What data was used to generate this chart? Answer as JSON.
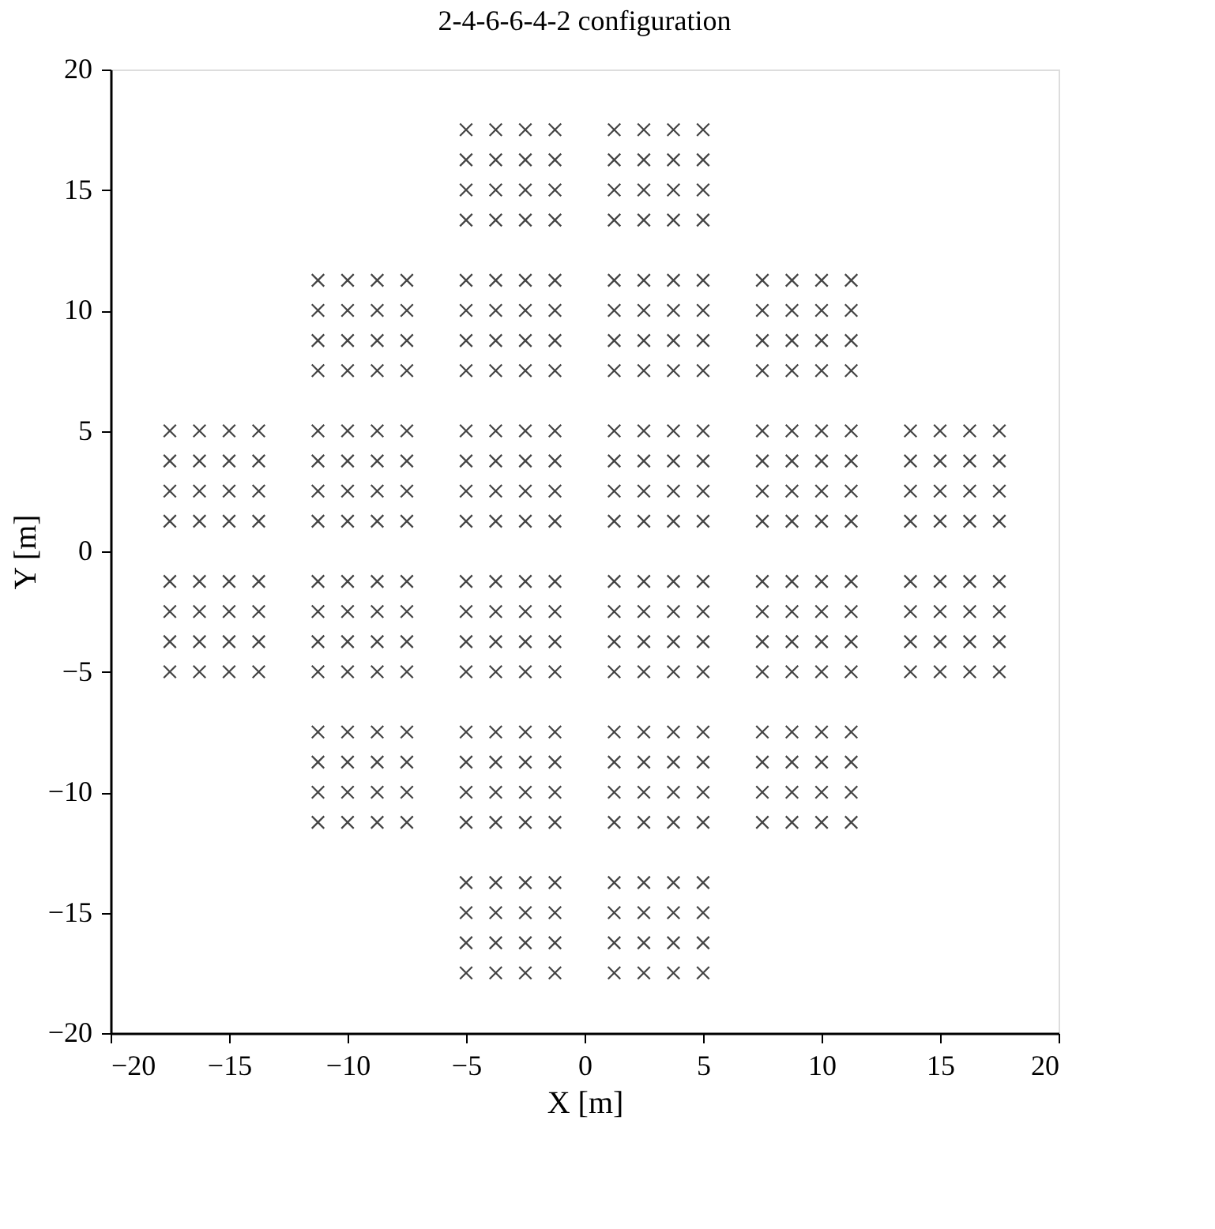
{
  "chart_data": {
    "type": "scatter",
    "title": "2-4-6-6-4-2 configuration",
    "xlabel": "X [m]",
    "ylabel": "Y [m]",
    "xlim": [
      -20,
      20
    ],
    "ylim": [
      -20,
      20
    ],
    "xticks": [
      -20,
      -15,
      -10,
      -5,
      0,
      5,
      10,
      15,
      20
    ],
    "yticks": [
      -20,
      -15,
      -10,
      -5,
      0,
      5,
      10,
      15,
      20
    ],
    "grid": false,
    "legend": false,
    "marker": "cross",
    "series": [
      {
        "color": "#444444",
        "x": [
          -5,
          -3.75,
          -2.5,
          -1.25,
          -5,
          -3.75,
          -2.5,
          -1.25,
          -5,
          -3.75,
          -2.5,
          -1.25,
          -5,
          -3.75,
          -2.5,
          -1.25
        ],
        "values": [
          17.5,
          17.5,
          17.5,
          17.5,
          16.25,
          16.25,
          16.25,
          16.25,
          15,
          15,
          15,
          15,
          13.75,
          13.75,
          13.75,
          13.75
        ]
      },
      {
        "color": "#444444",
        "x": [
          1.25,
          2.5,
          3.75,
          5,
          1.25,
          2.5,
          3.75,
          5,
          1.25,
          2.5,
          3.75,
          5,
          1.25,
          2.5,
          3.75,
          5
        ],
        "values": [
          17.5,
          17.5,
          17.5,
          17.5,
          16.25,
          16.25,
          16.25,
          16.25,
          15,
          15,
          15,
          15,
          13.75,
          13.75,
          13.75,
          13.75
        ]
      },
      {
        "color": "#444444",
        "x": [
          -11.25,
          -10,
          -8.75,
          -7.5,
          -11.25,
          -10,
          -8.75,
          -7.5,
          -11.25,
          -10,
          -8.75,
          -7.5,
          -11.25,
          -10,
          -8.75,
          -7.5
        ],
        "values": [
          11.25,
          11.25,
          11.25,
          11.25,
          10,
          10,
          10,
          10,
          8.75,
          8.75,
          8.75,
          8.75,
          7.5,
          7.5,
          7.5,
          7.5
        ]
      },
      {
        "color": "#444444",
        "x": [
          -5,
          -3.75,
          -2.5,
          -1.25,
          -5,
          -3.75,
          -2.5,
          -1.25,
          -5,
          -3.75,
          -2.5,
          -1.25,
          -5,
          -3.75,
          -2.5,
          -1.25
        ],
        "values": [
          11.25,
          11.25,
          11.25,
          11.25,
          10,
          10,
          10,
          10,
          8.75,
          8.75,
          8.75,
          8.75,
          7.5,
          7.5,
          7.5,
          7.5
        ]
      },
      {
        "color": "#444444",
        "x": [
          1.25,
          2.5,
          3.75,
          5,
          1.25,
          2.5,
          3.75,
          5,
          1.25,
          2.5,
          3.75,
          5,
          1.25,
          2.5,
          3.75,
          5
        ],
        "values": [
          11.25,
          11.25,
          11.25,
          11.25,
          10,
          10,
          10,
          10,
          8.75,
          8.75,
          8.75,
          8.75,
          7.5,
          7.5,
          7.5,
          7.5
        ]
      },
      {
        "color": "#444444",
        "x": [
          7.5,
          8.75,
          10,
          11.25,
          7.5,
          8.75,
          10,
          11.25,
          7.5,
          8.75,
          10,
          11.25,
          7.5,
          8.75,
          10,
          11.25
        ],
        "values": [
          11.25,
          11.25,
          11.25,
          11.25,
          10,
          10,
          10,
          10,
          8.75,
          8.75,
          8.75,
          8.75,
          7.5,
          7.5,
          7.5,
          7.5
        ]
      },
      {
        "color": "#444444",
        "x": [
          -17.5,
          -16.25,
          -15,
          -13.75,
          -17.5,
          -16.25,
          -15,
          -13.75,
          -17.5,
          -16.25,
          -15,
          -13.75,
          -17.5,
          -16.25,
          -15,
          -13.75
        ],
        "values": [
          5,
          5,
          5,
          5,
          3.75,
          3.75,
          3.75,
          3.75,
          2.5,
          2.5,
          2.5,
          2.5,
          1.25,
          1.25,
          1.25,
          1.25
        ]
      },
      {
        "color": "#444444",
        "x": [
          -11.25,
          -10,
          -8.75,
          -7.5,
          -11.25,
          -10,
          -8.75,
          -7.5,
          -11.25,
          -10,
          -8.75,
          -7.5,
          -11.25,
          -10,
          -8.75,
          -7.5
        ],
        "values": [
          5,
          5,
          5,
          5,
          3.75,
          3.75,
          3.75,
          3.75,
          2.5,
          2.5,
          2.5,
          2.5,
          1.25,
          1.25,
          1.25,
          1.25
        ]
      },
      {
        "color": "#444444",
        "x": [
          -5,
          -3.75,
          -2.5,
          -1.25,
          -5,
          -3.75,
          -2.5,
          -1.25,
          -5,
          -3.75,
          -2.5,
          -1.25,
          -5,
          -3.75,
          -2.5,
          -1.25
        ],
        "values": [
          5,
          5,
          5,
          5,
          3.75,
          3.75,
          3.75,
          3.75,
          2.5,
          2.5,
          2.5,
          2.5,
          1.25,
          1.25,
          1.25,
          1.25
        ]
      },
      {
        "color": "#444444",
        "x": [
          1.25,
          2.5,
          3.75,
          5,
          1.25,
          2.5,
          3.75,
          5,
          1.25,
          2.5,
          3.75,
          5,
          1.25,
          2.5,
          3.75,
          5
        ],
        "values": [
          5,
          5,
          5,
          5,
          3.75,
          3.75,
          3.75,
          3.75,
          2.5,
          2.5,
          2.5,
          2.5,
          1.25,
          1.25,
          1.25,
          1.25
        ]
      },
      {
        "color": "#444444",
        "x": [
          7.5,
          8.75,
          10,
          11.25,
          7.5,
          8.75,
          10,
          11.25,
          7.5,
          8.75,
          10,
          11.25,
          7.5,
          8.75,
          10,
          11.25
        ],
        "values": [
          5,
          5,
          5,
          5,
          3.75,
          3.75,
          3.75,
          3.75,
          2.5,
          2.5,
          2.5,
          2.5,
          1.25,
          1.25,
          1.25,
          1.25
        ]
      },
      {
        "color": "#444444",
        "x": [
          13.75,
          15,
          16.25,
          17.5,
          13.75,
          15,
          16.25,
          17.5,
          13.75,
          15,
          16.25,
          17.5,
          13.75,
          15,
          16.25,
          17.5
        ],
        "values": [
          5,
          5,
          5,
          5,
          3.75,
          3.75,
          3.75,
          3.75,
          2.5,
          2.5,
          2.5,
          2.5,
          1.25,
          1.25,
          1.25,
          1.25
        ]
      },
      {
        "color": "#444444",
        "x": [
          -17.5,
          -16.25,
          -15,
          -13.75,
          -17.5,
          -16.25,
          -15,
          -13.75,
          -17.5,
          -16.25,
          -15,
          -13.75,
          -17.5,
          -16.25,
          -15,
          -13.75
        ],
        "values": [
          -1.25,
          -1.25,
          -1.25,
          -1.25,
          -2.5,
          -2.5,
          -2.5,
          -2.5,
          -3.75,
          -3.75,
          -3.75,
          -3.75,
          -5,
          -5,
          -5,
          -5
        ]
      },
      {
        "color": "#444444",
        "x": [
          -11.25,
          -10,
          -8.75,
          -7.5,
          -11.25,
          -10,
          -8.75,
          -7.5,
          -11.25,
          -10,
          -8.75,
          -7.5,
          -11.25,
          -10,
          -8.75,
          -7.5
        ],
        "values": [
          -1.25,
          -1.25,
          -1.25,
          -1.25,
          -2.5,
          -2.5,
          -2.5,
          -2.5,
          -3.75,
          -3.75,
          -3.75,
          -3.75,
          -5,
          -5,
          -5,
          -5
        ]
      },
      {
        "color": "#444444",
        "x": [
          -5,
          -3.75,
          -2.5,
          -1.25,
          -5,
          -3.75,
          -2.5,
          -1.25,
          -5,
          -3.75,
          -2.5,
          -1.25,
          -5,
          -3.75,
          -2.5,
          -1.25
        ],
        "values": [
          -1.25,
          -1.25,
          -1.25,
          -1.25,
          -2.5,
          -2.5,
          -2.5,
          -2.5,
          -3.75,
          -3.75,
          -3.75,
          -3.75,
          -5,
          -5,
          -5,
          -5
        ]
      },
      {
        "color": "#444444",
        "x": [
          1.25,
          2.5,
          3.75,
          5,
          1.25,
          2.5,
          3.75,
          5,
          1.25,
          2.5,
          3.75,
          5,
          1.25,
          2.5,
          3.75,
          5
        ],
        "values": [
          -1.25,
          -1.25,
          -1.25,
          -1.25,
          -2.5,
          -2.5,
          -2.5,
          -2.5,
          -3.75,
          -3.75,
          -3.75,
          -3.75,
          -5,
          -5,
          -5,
          -5
        ]
      },
      {
        "color": "#444444",
        "x": [
          7.5,
          8.75,
          10,
          11.25,
          7.5,
          8.75,
          10,
          11.25,
          7.5,
          8.75,
          10,
          11.25,
          7.5,
          8.75,
          10,
          11.25
        ],
        "values": [
          -1.25,
          -1.25,
          -1.25,
          -1.25,
          -2.5,
          -2.5,
          -2.5,
          -2.5,
          -3.75,
          -3.75,
          -3.75,
          -3.75,
          -5,
          -5,
          -5,
          -5
        ]
      },
      {
        "color": "#444444",
        "x": [
          13.75,
          15,
          16.25,
          17.5,
          13.75,
          15,
          16.25,
          17.5,
          13.75,
          15,
          16.25,
          17.5,
          13.75,
          15,
          16.25,
          17.5
        ],
        "values": [
          -1.25,
          -1.25,
          -1.25,
          -1.25,
          -2.5,
          -2.5,
          -2.5,
          -2.5,
          -3.75,
          -3.75,
          -3.75,
          -3.75,
          -5,
          -5,
          -5,
          -5
        ]
      },
      {
        "color": "#444444",
        "x": [
          -11.25,
          -10,
          -8.75,
          -7.5,
          -11.25,
          -10,
          -8.75,
          -7.5,
          -11.25,
          -10,
          -8.75,
          -7.5,
          -11.25,
          -10,
          -8.75,
          -7.5
        ],
        "values": [
          -7.5,
          -7.5,
          -7.5,
          -7.5,
          -8.75,
          -8.75,
          -8.75,
          -8.75,
          -10,
          -10,
          -10,
          -10,
          -11.25,
          -11.25,
          -11.25,
          -11.25
        ]
      },
      {
        "color": "#444444",
        "x": [
          -5,
          -3.75,
          -2.5,
          -1.25,
          -5,
          -3.75,
          -2.5,
          -1.25,
          -5,
          -3.75,
          -2.5,
          -1.25,
          -5,
          -3.75,
          -2.5,
          -1.25
        ],
        "values": [
          -7.5,
          -7.5,
          -7.5,
          -7.5,
          -8.75,
          -8.75,
          -8.75,
          -8.75,
          -10,
          -10,
          -10,
          -10,
          -11.25,
          -11.25,
          -11.25,
          -11.25
        ]
      },
      {
        "color": "#444444",
        "x": [
          1.25,
          2.5,
          3.75,
          5,
          1.25,
          2.5,
          3.75,
          5,
          1.25,
          2.5,
          3.75,
          5,
          1.25,
          2.5,
          3.75,
          5
        ],
        "values": [
          -7.5,
          -7.5,
          -7.5,
          -7.5,
          -8.75,
          -8.75,
          -8.75,
          -8.75,
          -10,
          -10,
          -10,
          -10,
          -11.25,
          -11.25,
          -11.25,
          -11.25
        ]
      },
      {
        "color": "#444444",
        "x": [
          7.5,
          8.75,
          10,
          11.25,
          7.5,
          8.75,
          10,
          11.25,
          7.5,
          8.75,
          10,
          11.25,
          7.5,
          8.75,
          10,
          11.25
        ],
        "values": [
          -7.5,
          -7.5,
          -7.5,
          -7.5,
          -8.75,
          -8.75,
          -8.75,
          -8.75,
          -10,
          -10,
          -10,
          -10,
          -11.25,
          -11.25,
          -11.25,
          -11.25
        ]
      },
      {
        "color": "#444444",
        "x": [
          -5,
          -3.75,
          -2.5,
          -1.25,
          -5,
          -3.75,
          -2.5,
          -1.25,
          -5,
          -3.75,
          -2.5,
          -1.25,
          -5,
          -3.75,
          -2.5,
          -1.25
        ],
        "values": [
          -13.75,
          -13.75,
          -13.75,
          -13.75,
          -15,
          -15,
          -15,
          -15,
          -16.25,
          -16.25,
          -16.25,
          -16.25,
          -17.5,
          -17.5,
          -17.5,
          -17.5
        ]
      },
      {
        "color": "#444444",
        "x": [
          1.25,
          2.5,
          3.75,
          5,
          1.25,
          2.5,
          3.75,
          5,
          1.25,
          2.5,
          3.75,
          5,
          1.25,
          2.5,
          3.75,
          5
        ],
        "values": [
          -13.75,
          -13.75,
          -13.75,
          -13.75,
          -15,
          -15,
          -15,
          -15,
          -16.25,
          -16.25,
          -16.25,
          -16.25,
          -17.5,
          -17.5,
          -17.5,
          -17.5
        ]
      }
    ]
  }
}
